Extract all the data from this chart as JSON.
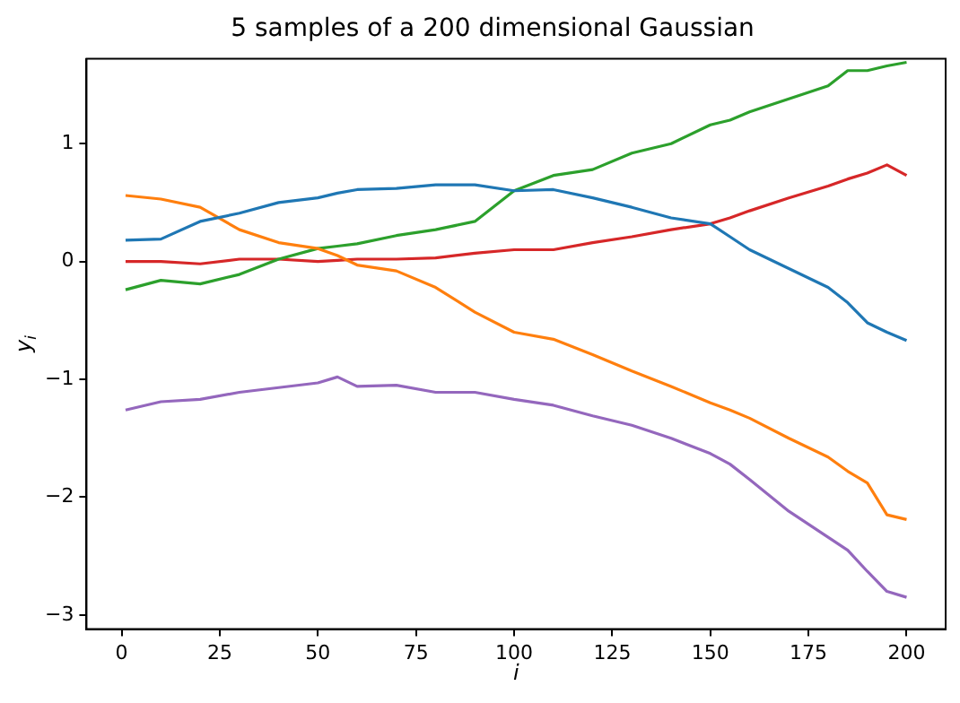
{
  "chart_data": {
    "type": "line",
    "title": "5 samples of a 200 dimensional Gaussian",
    "xlabel": "i",
    "ylabel": "y$_{i}$",
    "x": [
      1,
      10,
      20,
      30,
      40,
      50,
      55,
      60,
      70,
      80,
      90,
      100,
      110,
      120,
      130,
      140,
      150,
      155,
      160,
      170,
      180,
      185,
      190,
      195,
      200
    ],
    "series": [
      {
        "color": "#1f77b4",
        "values": [
          0.18,
          0.19,
          0.34,
          0.41,
          0.5,
          0.54,
          0.58,
          0.61,
          0.62,
          0.65,
          0.65,
          0.6,
          0.61,
          0.54,
          0.46,
          0.37,
          0.32,
          0.21,
          0.1,
          -0.06,
          -0.22,
          -0.35,
          -0.52,
          -0.6,
          -0.67
        ]
      },
      {
        "color": "#ff7f0e",
        "values": [
          0.56,
          0.53,
          0.46,
          0.27,
          0.16,
          0.11,
          0.05,
          -0.03,
          -0.08,
          -0.22,
          -0.43,
          -0.6,
          -0.66,
          -0.79,
          -0.93,
          -1.06,
          -1.2,
          -1.26,
          -1.33,
          -1.5,
          -1.66,
          -1.78,
          -1.88,
          -2.15,
          -2.19
        ]
      },
      {
        "color": "#2ca02c",
        "values": [
          -0.24,
          -0.16,
          -0.19,
          -0.11,
          0.02,
          0.11,
          0.13,
          0.15,
          0.22,
          0.27,
          0.34,
          0.6,
          0.73,
          0.78,
          0.92,
          1.0,
          1.16,
          1.2,
          1.27,
          1.38,
          1.49,
          1.62,
          1.62,
          1.66,
          1.69
        ]
      },
      {
        "color": "#d62728",
        "values": [
          0.0,
          0.0,
          -0.02,
          0.02,
          0.02,
          0.0,
          0.01,
          0.02,
          0.02,
          0.03,
          0.07,
          0.1,
          0.1,
          0.16,
          0.21,
          0.27,
          0.32,
          0.37,
          0.43,
          0.54,
          0.64,
          0.7,
          0.75,
          0.82,
          0.73
        ]
      },
      {
        "color": "#9467bd",
        "values": [
          -1.26,
          -1.19,
          -1.17,
          -1.11,
          -1.07,
          -1.03,
          -0.98,
          -1.06,
          -1.05,
          -1.11,
          -1.11,
          -1.17,
          -1.22,
          -1.31,
          -1.39,
          -1.5,
          -1.63,
          -1.72,
          -1.85,
          -2.12,
          -2.34,
          -2.45,
          -2.63,
          -2.8,
          -2.85
        ]
      }
    ],
    "xlim": [
      -8.95,
      209.95
    ],
    "ylim": [
      -3.12,
      1.72
    ],
    "xticks": [
      0,
      25,
      50,
      75,
      100,
      125,
      150,
      175,
      200
    ],
    "yticks": [
      -3,
      -2,
      -1,
      0,
      1
    ],
    "grid": false,
    "legend": false
  }
}
